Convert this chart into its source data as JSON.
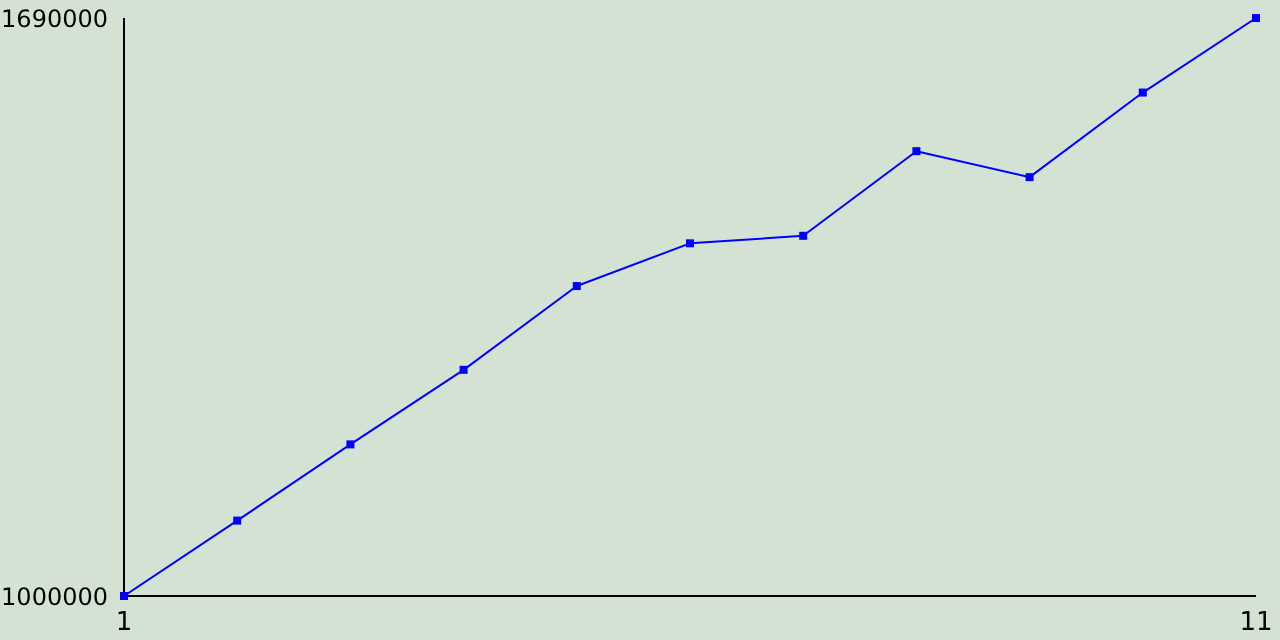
{
  "chart_data": {
    "type": "line",
    "x": [
      1,
      2,
      3,
      4,
      5,
      6,
      7,
      8,
      9,
      10,
      11
    ],
    "series": [
      {
        "color": "#0000ff",
        "values": [
          1000000,
          1090000,
          1181000,
          1270000,
          1370000,
          1421000,
          1430000,
          1531000,
          1500000,
          1601000,
          1690000
        ]
      }
    ],
    "xlim": [
      1,
      11
    ],
    "xticks": [
      1,
      11
    ],
    "ylim": [
      1000000,
      1690000
    ],
    "yticks": [
      1000000,
      1690000
    ],
    "grid": false,
    "legend": false,
    "marker": "square",
    "line_style": "solid"
  }
}
